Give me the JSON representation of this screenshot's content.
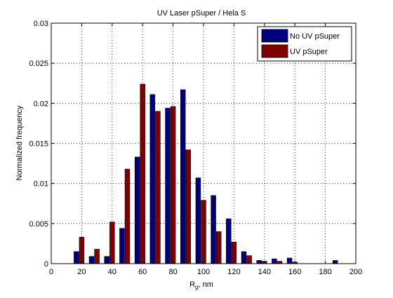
{
  "chart_data": {
    "type": "bar",
    "title": "UV Laser pSuper / Hela S",
    "xlabel_main": "R",
    "xlabel_sub": "g",
    "xlabel_rest": ", nm",
    "ylabel": "Normalized frequency",
    "xlim": [
      0,
      200
    ],
    "ylim": [
      0,
      0.03
    ],
    "xticks": [
      0,
      20,
      40,
      60,
      80,
      100,
      120,
      140,
      160,
      180,
      200
    ],
    "xtick_labels": [
      "0",
      "20",
      "40",
      "60",
      "80",
      "100",
      "120",
      "140",
      "160",
      "180",
      "200"
    ],
    "yticks": [
      0,
      0.005,
      0.01,
      0.015,
      0.02,
      0.025,
      0.03
    ],
    "ytick_labels": [
      "0",
      "0.005",
      "0.01",
      "0.015",
      "0.02",
      "0.025",
      "0.03"
    ],
    "grid": true,
    "legend_position": "top-right",
    "x": [
      20,
      30,
      40,
      50,
      60,
      70,
      80,
      90,
      100,
      110,
      120,
      130,
      140,
      150,
      160,
      170,
      180,
      190
    ],
    "series": [
      {
        "name": "No UV pSuper",
        "color": "#00007F",
        "values": [
          0.0015,
          0.0009,
          0.0009,
          0.0044,
          0.0133,
          0.0211,
          0.0194,
          0.0217,
          0.0107,
          0.0085,
          0.0056,
          0.0015,
          0.0004,
          0.0006,
          0.0007,
          0,
          0,
          0.0004
        ]
      },
      {
        "name": "UV pSuper",
        "color": "#7F0000",
        "values": [
          0.0033,
          0.0018,
          0.0052,
          0.0118,
          0.0224,
          0.019,
          0.0196,
          0.0142,
          0.0079,
          0.004,
          0.0027,
          0.001,
          0.0003,
          0.0003,
          0.0002,
          0,
          0,
          0
        ]
      }
    ]
  }
}
